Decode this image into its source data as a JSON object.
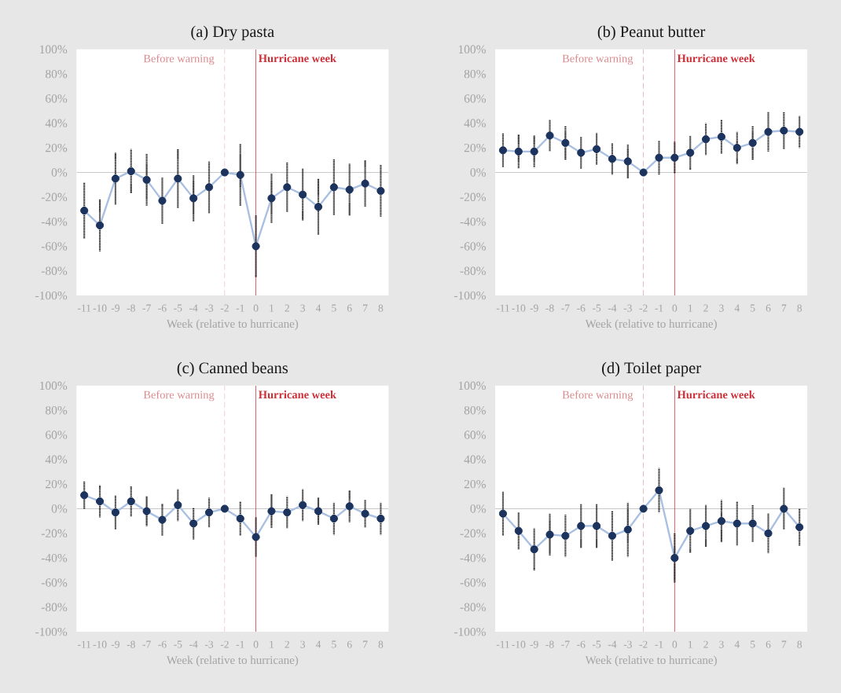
{
  "chart_data": [
    {
      "type": "line",
      "title": "(a) Dry pasta",
      "xlabel": "Week (relative to hurricane)",
      "x": [
        -11,
        -10,
        -9,
        -8,
        -7,
        -6,
        -5,
        -4,
        -3,
        -2,
        -1,
        0,
        1,
        2,
        3,
        4,
        5,
        6,
        7,
        8
      ],
      "xlim": [
        -11.5,
        8.5
      ],
      "xticks": [
        -11,
        -10,
        -9,
        -8,
        -7,
        -6,
        -5,
        -4,
        -3,
        -2,
        -1,
        0,
        1,
        2,
        3,
        4,
        5,
        6,
        7,
        8
      ],
      "ylim": [
        -100,
        100
      ],
      "yticks": [
        {
          "value": -100,
          "label": "-100%"
        },
        {
          "value": -80,
          "label": "-80%"
        },
        {
          "value": -60,
          "label": "-60%"
        },
        {
          "value": -40,
          "label": "-40%"
        },
        {
          "value": -20,
          "label": "-20%"
        },
        {
          "value": 0,
          "label": "0%"
        },
        {
          "value": 20,
          "label": "20%"
        },
        {
          "value": 40,
          "label": "40%"
        },
        {
          "value": 60,
          "label": "60%"
        },
        {
          "value": 80,
          "label": "80%"
        },
        {
          "value": 100,
          "label": "100%"
        }
      ],
      "marker": "circle",
      "line_style": "solid",
      "ref_lines": [
        {
          "axis": "y",
          "value": 0,
          "color": "#c8c8c8"
        },
        {
          "axis": "x",
          "value": -2,
          "label": "Before warning",
          "color": "#d98a8e",
          "line_style": "dashed"
        },
        {
          "axis": "x",
          "value": 0,
          "label": "Hurricane week",
          "color": "#cc2f37",
          "line_style": "solid"
        }
      ],
      "series": [
        {
          "marker": "none",
          "color": "#aac0e2",
          "values": [
            -31,
            -43,
            -5,
            1,
            -6,
            -23,
            -5,
            -21,
            -12,
            0,
            -2,
            -60,
            -21,
            -12,
            -18,
            -28,
            -12,
            -14,
            -9,
            -15
          ]
        },
        {
          "type": "scatter",
          "color": "#1c335e",
          "values": [
            -31,
            -43,
            -5,
            1,
            -6,
            -23,
            -5,
            -21,
            -12,
            0,
            -2,
            -60,
            -21,
            -12,
            -18,
            -28,
            -12,
            -14,
            -9,
            -15
          ],
          "errors": [
            23,
            21,
            21,
            18,
            21,
            19,
            24,
            19,
            21,
            null,
            25,
            25,
            20,
            20,
            21,
            23,
            23,
            21,
            19,
            21
          ]
        }
      ]
    },
    {
      "type": "line",
      "title": "(b) Peanut butter",
      "xlabel": "Week (relative to hurricane)",
      "x": [
        -11,
        -10,
        -9,
        -8,
        -7,
        -6,
        -5,
        -4,
        -3,
        -2,
        -1,
        0,
        1,
        2,
        3,
        4,
        5,
        6,
        7,
        8
      ],
      "xlim": [
        -11.5,
        8.5
      ],
      "xticks": [
        -11,
        -10,
        -9,
        -8,
        -7,
        -6,
        -5,
        -4,
        -3,
        -2,
        -1,
        0,
        1,
        2,
        3,
        4,
        5,
        6,
        7,
        8
      ],
      "ylim": [
        -100,
        100
      ],
      "yticks": [
        {
          "value": -100,
          "label": "-100%"
        },
        {
          "value": -80,
          "label": "-80%"
        },
        {
          "value": -60,
          "label": "-60%"
        },
        {
          "value": -40,
          "label": "-40%"
        },
        {
          "value": -20,
          "label": "-20%"
        },
        {
          "value": 0,
          "label": "0%"
        },
        {
          "value": 20,
          "label": "20%"
        },
        {
          "value": 40,
          "label": "40%"
        },
        {
          "value": 60,
          "label": "60%"
        },
        {
          "value": 80,
          "label": "80%"
        },
        {
          "value": 100,
          "label": "100%"
        }
      ],
      "marker": "circle",
      "line_style": "solid",
      "ref_lines": [
        {
          "axis": "y",
          "value": 0,
          "color": "#c8c8c8"
        },
        {
          "axis": "x",
          "value": -2,
          "label": "Before warning",
          "color": "#d98a8e",
          "line_style": "dashed"
        },
        {
          "axis": "x",
          "value": 0,
          "label": "Hurricane week",
          "color": "#cc2f37",
          "line_style": "solid"
        }
      ],
      "series": [
        {
          "marker": "none",
          "color": "#aac0e2",
          "values": [
            18,
            17,
            17,
            30,
            24,
            16,
            19,
            11,
            9,
            0,
            12,
            12,
            16,
            27,
            29,
            20,
            24,
            33,
            34,
            33
          ]
        },
        {
          "type": "scatter",
          "color": "#1c335e",
          "values": [
            18,
            17,
            17,
            30,
            24,
            16,
            19,
            11,
            9,
            0,
            12,
            12,
            16,
            27,
            29,
            20,
            24,
            33,
            34,
            33
          ],
          "errors": [
            14,
            14,
            13,
            13,
            14,
            13,
            13,
            13,
            14,
            null,
            14,
            13,
            14,
            13,
            14,
            13,
            14,
            16,
            15,
            13
          ]
        }
      ]
    },
    {
      "type": "line",
      "title": "(c) Canned beans",
      "xlabel": "Week (relative to hurricane)",
      "x": [
        -11,
        -10,
        -9,
        -8,
        -7,
        -6,
        -5,
        -4,
        -3,
        -2,
        -1,
        0,
        1,
        2,
        3,
        4,
        5,
        6,
        7,
        8
      ],
      "xlim": [
        -11.5,
        8.5
      ],
      "xticks": [
        -11,
        -10,
        -9,
        -8,
        -7,
        -6,
        -5,
        -4,
        -3,
        -2,
        -1,
        0,
        1,
        2,
        3,
        4,
        5,
        6,
        7,
        8
      ],
      "ylim": [
        -100,
        100
      ],
      "yticks": [
        {
          "value": -100,
          "label": "-100%"
        },
        {
          "value": -80,
          "label": "-80%"
        },
        {
          "value": -60,
          "label": "-60%"
        },
        {
          "value": -40,
          "label": "-40%"
        },
        {
          "value": -20,
          "label": "-20%"
        },
        {
          "value": 0,
          "label": "0%"
        },
        {
          "value": 20,
          "label": "20%"
        },
        {
          "value": 40,
          "label": "40%"
        },
        {
          "value": 60,
          "label": "60%"
        },
        {
          "value": 80,
          "label": "80%"
        },
        {
          "value": 100,
          "label": "100%"
        }
      ],
      "marker": "circle",
      "line_style": "solid",
      "ref_lines": [
        {
          "axis": "y",
          "value": 0,
          "color": "#c8c8c8"
        },
        {
          "axis": "x",
          "value": -2,
          "label": "Before warning",
          "color": "#d98a8e",
          "line_style": "dashed"
        },
        {
          "axis": "x",
          "value": 0,
          "label": "Hurricane week",
          "color": "#cc2f37",
          "line_style": "solid"
        }
      ],
      "series": [
        {
          "marker": "none",
          "color": "#aac0e2",
          "values": [
            11,
            6,
            -3,
            6,
            -2,
            -9,
            3,
            -12,
            -3,
            0,
            -8,
            -23,
            -2,
            -3,
            3,
            -2,
            -8,
            2,
            -4,
            -8
          ]
        },
        {
          "type": "scatter",
          "color": "#1c335e",
          "values": [
            11,
            6,
            -3,
            6,
            -2,
            -9,
            3,
            -12,
            -3,
            0,
            -8,
            -23,
            -2,
            -3,
            3,
            -2,
            -8,
            2,
            -4,
            -8
          ],
          "errors": [
            11,
            13,
            14,
            12,
            12,
            13,
            13,
            13,
            12,
            null,
            14,
            16,
            14,
            13,
            13,
            11,
            13,
            13,
            11,
            13
          ]
        }
      ]
    },
    {
      "type": "line",
      "title": "(d) Toilet paper",
      "xlabel": "Week (relative to hurricane)",
      "x": [
        -11,
        -10,
        -9,
        -8,
        -7,
        -6,
        -5,
        -4,
        -3,
        -2,
        -1,
        0,
        1,
        2,
        3,
        4,
        5,
        6,
        7,
        8
      ],
      "xlim": [
        -11.5,
        8.5
      ],
      "xticks": [
        -11,
        -10,
        -9,
        -8,
        -7,
        -6,
        -5,
        -4,
        -3,
        -2,
        -1,
        0,
        1,
        2,
        3,
        4,
        5,
        6,
        7,
        8
      ],
      "ylim": [
        -100,
        100
      ],
      "yticks": [
        {
          "value": -100,
          "label": "-100%"
        },
        {
          "value": -80,
          "label": "-80%"
        },
        {
          "value": -60,
          "label": "-60%"
        },
        {
          "value": -40,
          "label": "-40%"
        },
        {
          "value": -20,
          "label": "-20%"
        },
        {
          "value": 0,
          "label": "0%"
        },
        {
          "value": 20,
          "label": "20%"
        },
        {
          "value": 40,
          "label": "40%"
        },
        {
          "value": 60,
          "label": "60%"
        },
        {
          "value": 80,
          "label": "80%"
        },
        {
          "value": 100,
          "label": "100%"
        }
      ],
      "marker": "circle",
      "line_style": "solid",
      "ref_lines": [
        {
          "axis": "y",
          "value": 0,
          "color": "#c8c8c8"
        },
        {
          "axis": "x",
          "value": -2,
          "label": "Before warning",
          "color": "#d98a8e",
          "line_style": "dashed"
        },
        {
          "axis": "x",
          "value": 0,
          "label": "Hurricane week",
          "color": "#cc2f37",
          "line_style": "solid"
        }
      ],
      "series": [
        {
          "marker": "none",
          "color": "#aac0e2",
          "values": [
            -4,
            -18,
            -33,
            -21,
            -22,
            -14,
            -14,
            -22,
            -17,
            0,
            15,
            -40,
            -18,
            -14,
            -10,
            -12,
            -12,
            -20,
            0,
            -15
          ]
        },
        {
          "type": "scatter",
          "color": "#1c335e",
          "values": [
            -4,
            -18,
            -33,
            -21,
            -22,
            -14,
            -14,
            -22,
            -17,
            0,
            15,
            -40,
            -18,
            -14,
            -10,
            -12,
            -12,
            -20,
            0,
            -15
          ],
          "errors": [
            18,
            15,
            17,
            17,
            17,
            18,
            18,
            20,
            22,
            null,
            18,
            20,
            18,
            17,
            17,
            18,
            15,
            16,
            17,
            15
          ]
        }
      ]
    }
  ]
}
